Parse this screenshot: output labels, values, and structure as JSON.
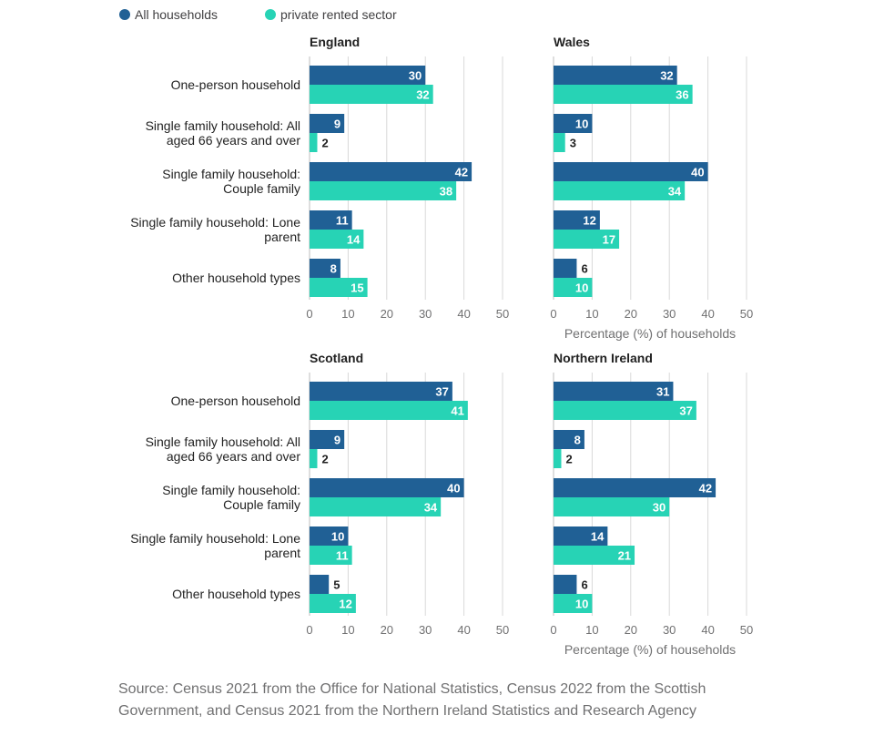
{
  "colors": {
    "all_households": "#206095",
    "private_rented": "#27d3b5",
    "grid": "#d9d9d9",
    "axis": "#707071"
  },
  "legend": [
    {
      "name": "All households",
      "color": "#206095"
    },
    {
      "name": "private rented sector",
      "color": "#27d3b5"
    }
  ],
  "source_text": "Source: Census 2021 from the Office for National Statistics, Census 2022 from the Scottish Government, and Census 2021 from the Northern Ireland Statistics and Research Agency",
  "chart_data": [
    {
      "type": "bar",
      "orientation": "horizontal",
      "title": "England",
      "categories": [
        "One-person household",
        "Single family household: All aged 66 years and over",
        "Single family household: Couple family",
        "Single family household: Lone parent",
        "Other household types"
      ],
      "category_lines": [
        [
          "One-person household"
        ],
        [
          "Single family household: All",
          "aged 66 years and over"
        ],
        [
          "Single family household:",
          "Couple family"
        ],
        [
          "Single family household: Lone",
          "parent"
        ],
        [
          "Other household types"
        ]
      ],
      "series": [
        {
          "name": "All households",
          "values": [
            30,
            9,
            42,
            11,
            8
          ]
        },
        {
          "name": "private rented sector",
          "values": [
            32,
            2,
            38,
            14,
            15
          ]
        }
      ],
      "xlim": [
        0,
        50
      ],
      "xticks": [
        "0",
        "10",
        "20",
        "30",
        "40",
        "50"
      ],
      "xlabel": "",
      "grid": true
    },
    {
      "type": "bar",
      "orientation": "horizontal",
      "title": "Wales",
      "categories": [
        "One-person household",
        "Single family household: All aged 66 years and over",
        "Single family household: Couple family",
        "Single family household: Lone parent",
        "Other household types"
      ],
      "category_lines": [],
      "series": [
        {
          "name": "All households",
          "values": [
            32,
            10,
            40,
            12,
            6
          ]
        },
        {
          "name": "private rented sector",
          "values": [
            36,
            3,
            34,
            17,
            10
          ]
        }
      ],
      "xlim": [
        0,
        50
      ],
      "xticks": [
        "0",
        "10",
        "20",
        "30",
        "40",
        "50"
      ],
      "xlabel": "Percentage (%) of households",
      "grid": true
    },
    {
      "type": "bar",
      "orientation": "horizontal",
      "title": "Scotland",
      "categories": [
        "One-person household",
        "Single family household: All aged 66 years and over",
        "Single family household: Couple family",
        "Single family household: Lone parent",
        "Other household types"
      ],
      "category_lines": [
        [
          "One-person household"
        ],
        [
          "Single family household: All",
          "aged 66 years and over"
        ],
        [
          "Single family household:",
          "Couple family"
        ],
        [
          "Single family household: Lone",
          "parent"
        ],
        [
          "Other household types"
        ]
      ],
      "series": [
        {
          "name": "All households",
          "values": [
            37,
            9,
            40,
            10,
            5
          ]
        },
        {
          "name": "private rented sector",
          "values": [
            41,
            2,
            34,
            11,
            12
          ]
        }
      ],
      "xlim": [
        0,
        50
      ],
      "xticks": [
        "0",
        "10",
        "20",
        "30",
        "40",
        "50"
      ],
      "xlabel": "",
      "grid": true
    },
    {
      "type": "bar",
      "orientation": "horizontal",
      "title": "Northern Ireland",
      "categories": [
        "One-person household",
        "Single family household: All aged 66 years and over",
        "Single family household: Couple family",
        "Single family household: Lone parent",
        "Other household types"
      ],
      "category_lines": [],
      "series": [
        {
          "name": "All households",
          "values": [
            31,
            8,
            42,
            14,
            6
          ]
        },
        {
          "name": "private rented sector",
          "values": [
            37,
            2,
            30,
            21,
            10
          ]
        }
      ],
      "xlim": [
        0,
        50
      ],
      "xticks": [
        "0",
        "10",
        "20",
        "30",
        "40",
        "50"
      ],
      "xlabel": "Percentage (%) of households",
      "grid": true
    }
  ]
}
